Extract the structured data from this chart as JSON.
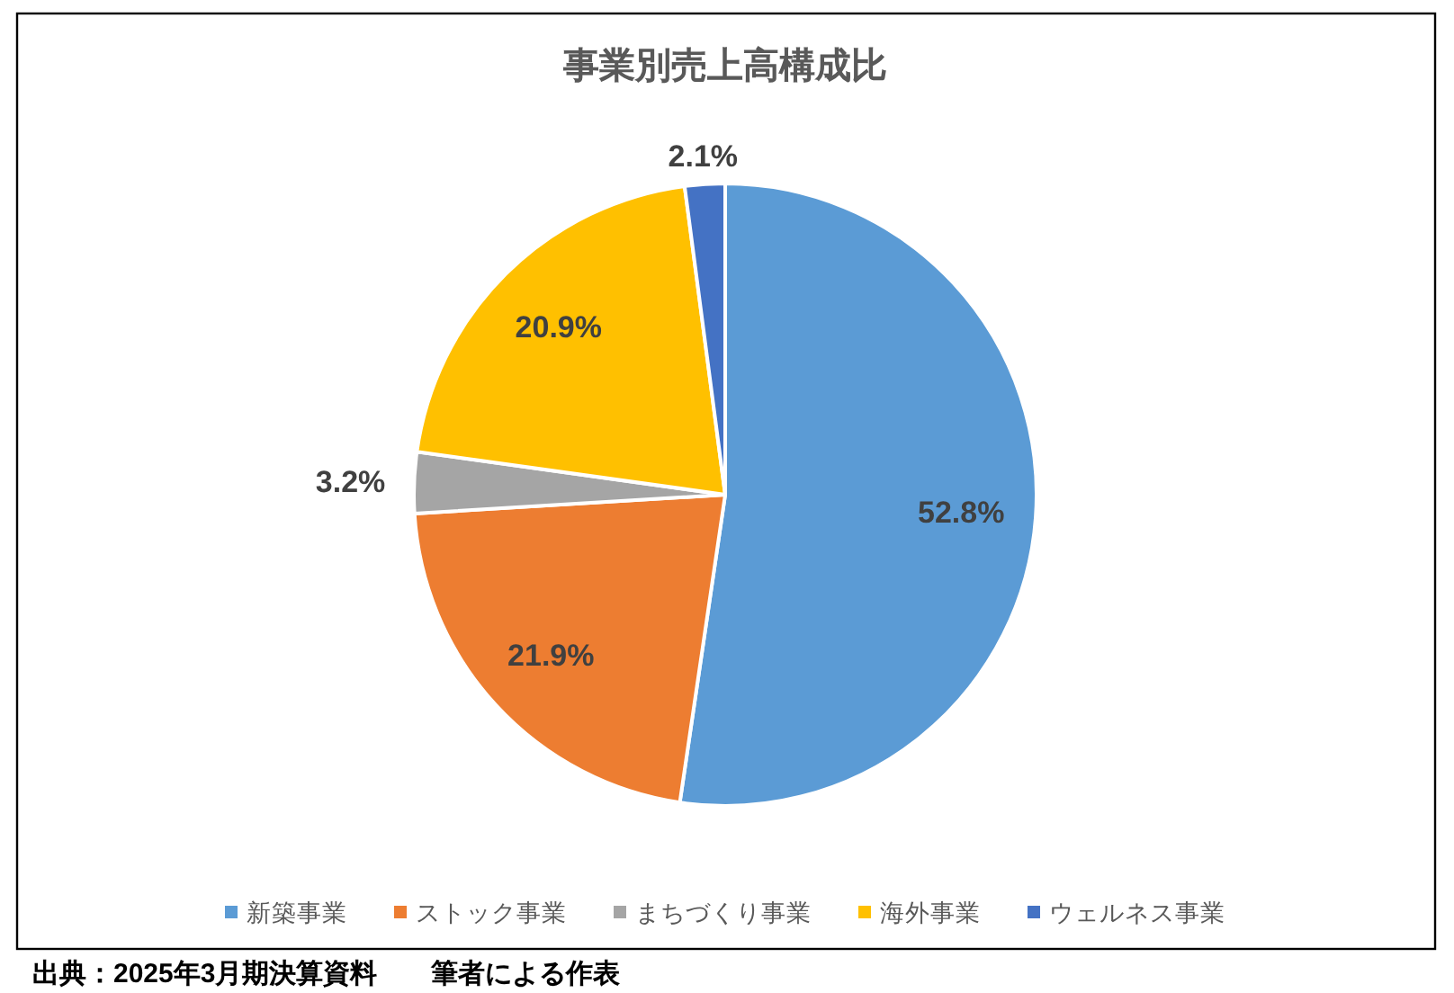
{
  "chart_data": {
    "type": "pie",
    "title": "事業別売上高構成比",
    "categories": [
      "新築事業",
      "ストック事業",
      "まちづくり事業",
      "海外事業",
      "ウェルネス事業"
    ],
    "values": [
      52.8,
      21.9,
      3.2,
      20.9,
      2.1
    ],
    "colors": [
      "#5b9bd5",
      "#ed7d31",
      "#a5a5a5",
      "#ffc000",
      "#4472c4"
    ],
    "value_labels": [
      "52.8%",
      "21.9%",
      "3.2%",
      "20.9%",
      "2.1%"
    ],
    "legend": "bottom",
    "annotations": [
      "出典：2025年3月期決算資料　　筆者による作表"
    ]
  }
}
